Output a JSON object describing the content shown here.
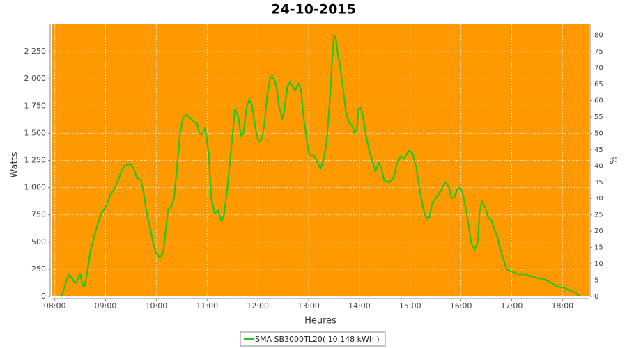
{
  "chart_data": {
    "type": "line",
    "title": "24-10-2015",
    "xlabel": "Heures",
    "ylabel": "Watts",
    "y2label": "%",
    "xlim": [
      "07:57",
      "18:31"
    ],
    "xticks": [
      "08:00",
      "09:00",
      "10:00",
      "11:00",
      "12:00",
      "13:00",
      "14:00",
      "15:00",
      "16:00",
      "17:00",
      "18:00"
    ],
    "ylim": [
      0,
      2500
    ],
    "yticks": [
      0,
      250,
      500,
      750,
      {
        "value": 1000,
        "label": "1 000"
      },
      {
        "value": 1250,
        "label": "1 250"
      },
      {
        "value": 1500,
        "label": "1 500"
      },
      {
        "value": 1750,
        "label": "1 750"
      },
      {
        "value": 2000,
        "label": "2 000"
      },
      {
        "value": 2250,
        "label": "2 250"
      }
    ],
    "y2lim": [
      0,
      83.33
    ],
    "y2ticks": [
      0,
      5,
      10,
      15,
      20,
      25,
      30,
      35,
      40,
      45,
      50,
      55,
      60,
      65,
      70,
      75,
      80
    ],
    "grid": true,
    "background": "#ff9900",
    "legend": "bottom",
    "series": [
      {
        "name": "SMA SB3000TL20( 10,148 kWh )",
        "color": "#1ec81e",
        "x": [
          "08:08",
          "08:12",
          "08:14",
          "08:17",
          "08:21",
          "08:24",
          "08:26",
          "08:30",
          "08:33",
          "08:35",
          "08:39",
          "08:42",
          "08:46",
          "08:50",
          "08:55",
          "09:00",
          "09:05",
          "09:11",
          "09:15",
          "09:19",
          "09:23",
          "09:29",
          "09:33",
          "09:37",
          "09:42",
          "09:45",
          "09:49",
          "09:53",
          "09:56",
          "10:00",
          "10:04",
          "10:08",
          "10:11",
          "10:14",
          "10:18",
          "10:21",
          "10:24",
          "10:28",
          "10:32",
          "10:36",
          "10:40",
          "10:44",
          "10:48",
          "10:51",
          "10:54",
          "10:58",
          "11:02",
          "11:05",
          "11:09",
          "11:13",
          "11:17",
          "11:20",
          "11:24",
          "11:29",
          "11:33",
          "11:37",
          "11:40",
          "11:43",
          "11:47",
          "11:50",
          "11:53",
          "11:57",
          "12:01",
          "12:05",
          "12:08",
          "12:11",
          "12:15",
          "12:19",
          "12:22",
          "12:25",
          "12:29",
          "12:31",
          "12:35",
          "12:38",
          "12:42",
          "12:44",
          "12:48",
          "12:51",
          "12:54",
          "12:58",
          "13:01",
          "13:06",
          "13:10",
          "13:14",
          "13:18",
          "13:21",
          "13:25",
          "13:28",
          "13:30",
          "13:32",
          "13:35",
          "13:37",
          "13:40",
          "13:44",
          "13:48",
          "13:52",
          "13:54",
          "13:57",
          "13:59",
          "14:02",
          "14:05",
          "14:08",
          "14:12",
          "14:16",
          "14:19",
          "14:23",
          "14:26",
          "14:29",
          "14:33",
          "14:37",
          "14:41",
          "14:44",
          "14:49",
          "14:53",
          "14:56",
          "14:59",
          "15:03",
          "15:07",
          "15:11",
          "15:15",
          "15:19",
          "15:23",
          "15:26",
          "15:30",
          "15:34",
          "15:38",
          "15:42",
          "15:46",
          "15:49",
          "15:52",
          "15:56",
          "15:59",
          "16:02",
          "16:06",
          "16:09",
          "16:12",
          "16:16",
          "16:20",
          "16:22",
          "16:25",
          "16:29",
          "16:32",
          "16:36",
          "16:39",
          "16:43",
          "16:46",
          "16:50",
          "16:54",
          "17:00",
          "17:09",
          "17:14",
          "17:21",
          "17:30",
          "17:38",
          "17:46",
          "17:54",
          "18:02",
          "18:11",
          "18:16",
          "18:21"
        ],
        "values": [
          0,
          100,
          150,
          200,
          160,
          120,
          130,
          210,
          100,
          90,
          250,
          420,
          530,
          650,
          760,
          820,
          920,
          1000,
          1070,
          1160,
          1200,
          1220,
          1180,
          1090,
          1070,
          950,
          750,
          620,
          500,
          390,
          360,
          400,
          600,
          800,
          830,
          900,
          1150,
          1500,
          1650,
          1670,
          1640,
          1610,
          1590,
          1500,
          1490,
          1550,
          1300,
          900,
          760,
          790,
          690,
          750,
          1000,
          1400,
          1720,
          1650,
          1470,
          1500,
          1750,
          1810,
          1760,
          1550,
          1420,
          1450,
          1600,
          1850,
          2020,
          2000,
          1930,
          1750,
          1630,
          1700,
          1930,
          1970,
          1920,
          1890,
          1960,
          1900,
          1650,
          1430,
          1300,
          1300,
          1240,
          1170,
          1270,
          1400,
          1800,
          2200,
          2400,
          2380,
          2200,
          2130,
          1950,
          1700,
          1600,
          1560,
          1500,
          1530,
          1720,
          1730,
          1620,
          1470,
          1330,
          1230,
          1150,
          1230,
          1180,
          1070,
          1050,
          1060,
          1100,
          1210,
          1290,
          1270,
          1310,
          1340,
          1310,
          1190,
          1000,
          820,
          720,
          730,
          860,
          900,
          940,
          1000,
          1050,
          1000,
          900,
          910,
          990,
          1000,
          950,
          800,
          660,
          500,
          430,
          500,
          780,
          880,
          810,
          730,
          700,
          630,
          550,
          450,
          350,
          250,
          230,
          200,
          210,
          190,
          170,
          160,
          130,
          90,
          80,
          50,
          30,
          0
        ]
      }
    ]
  }
}
